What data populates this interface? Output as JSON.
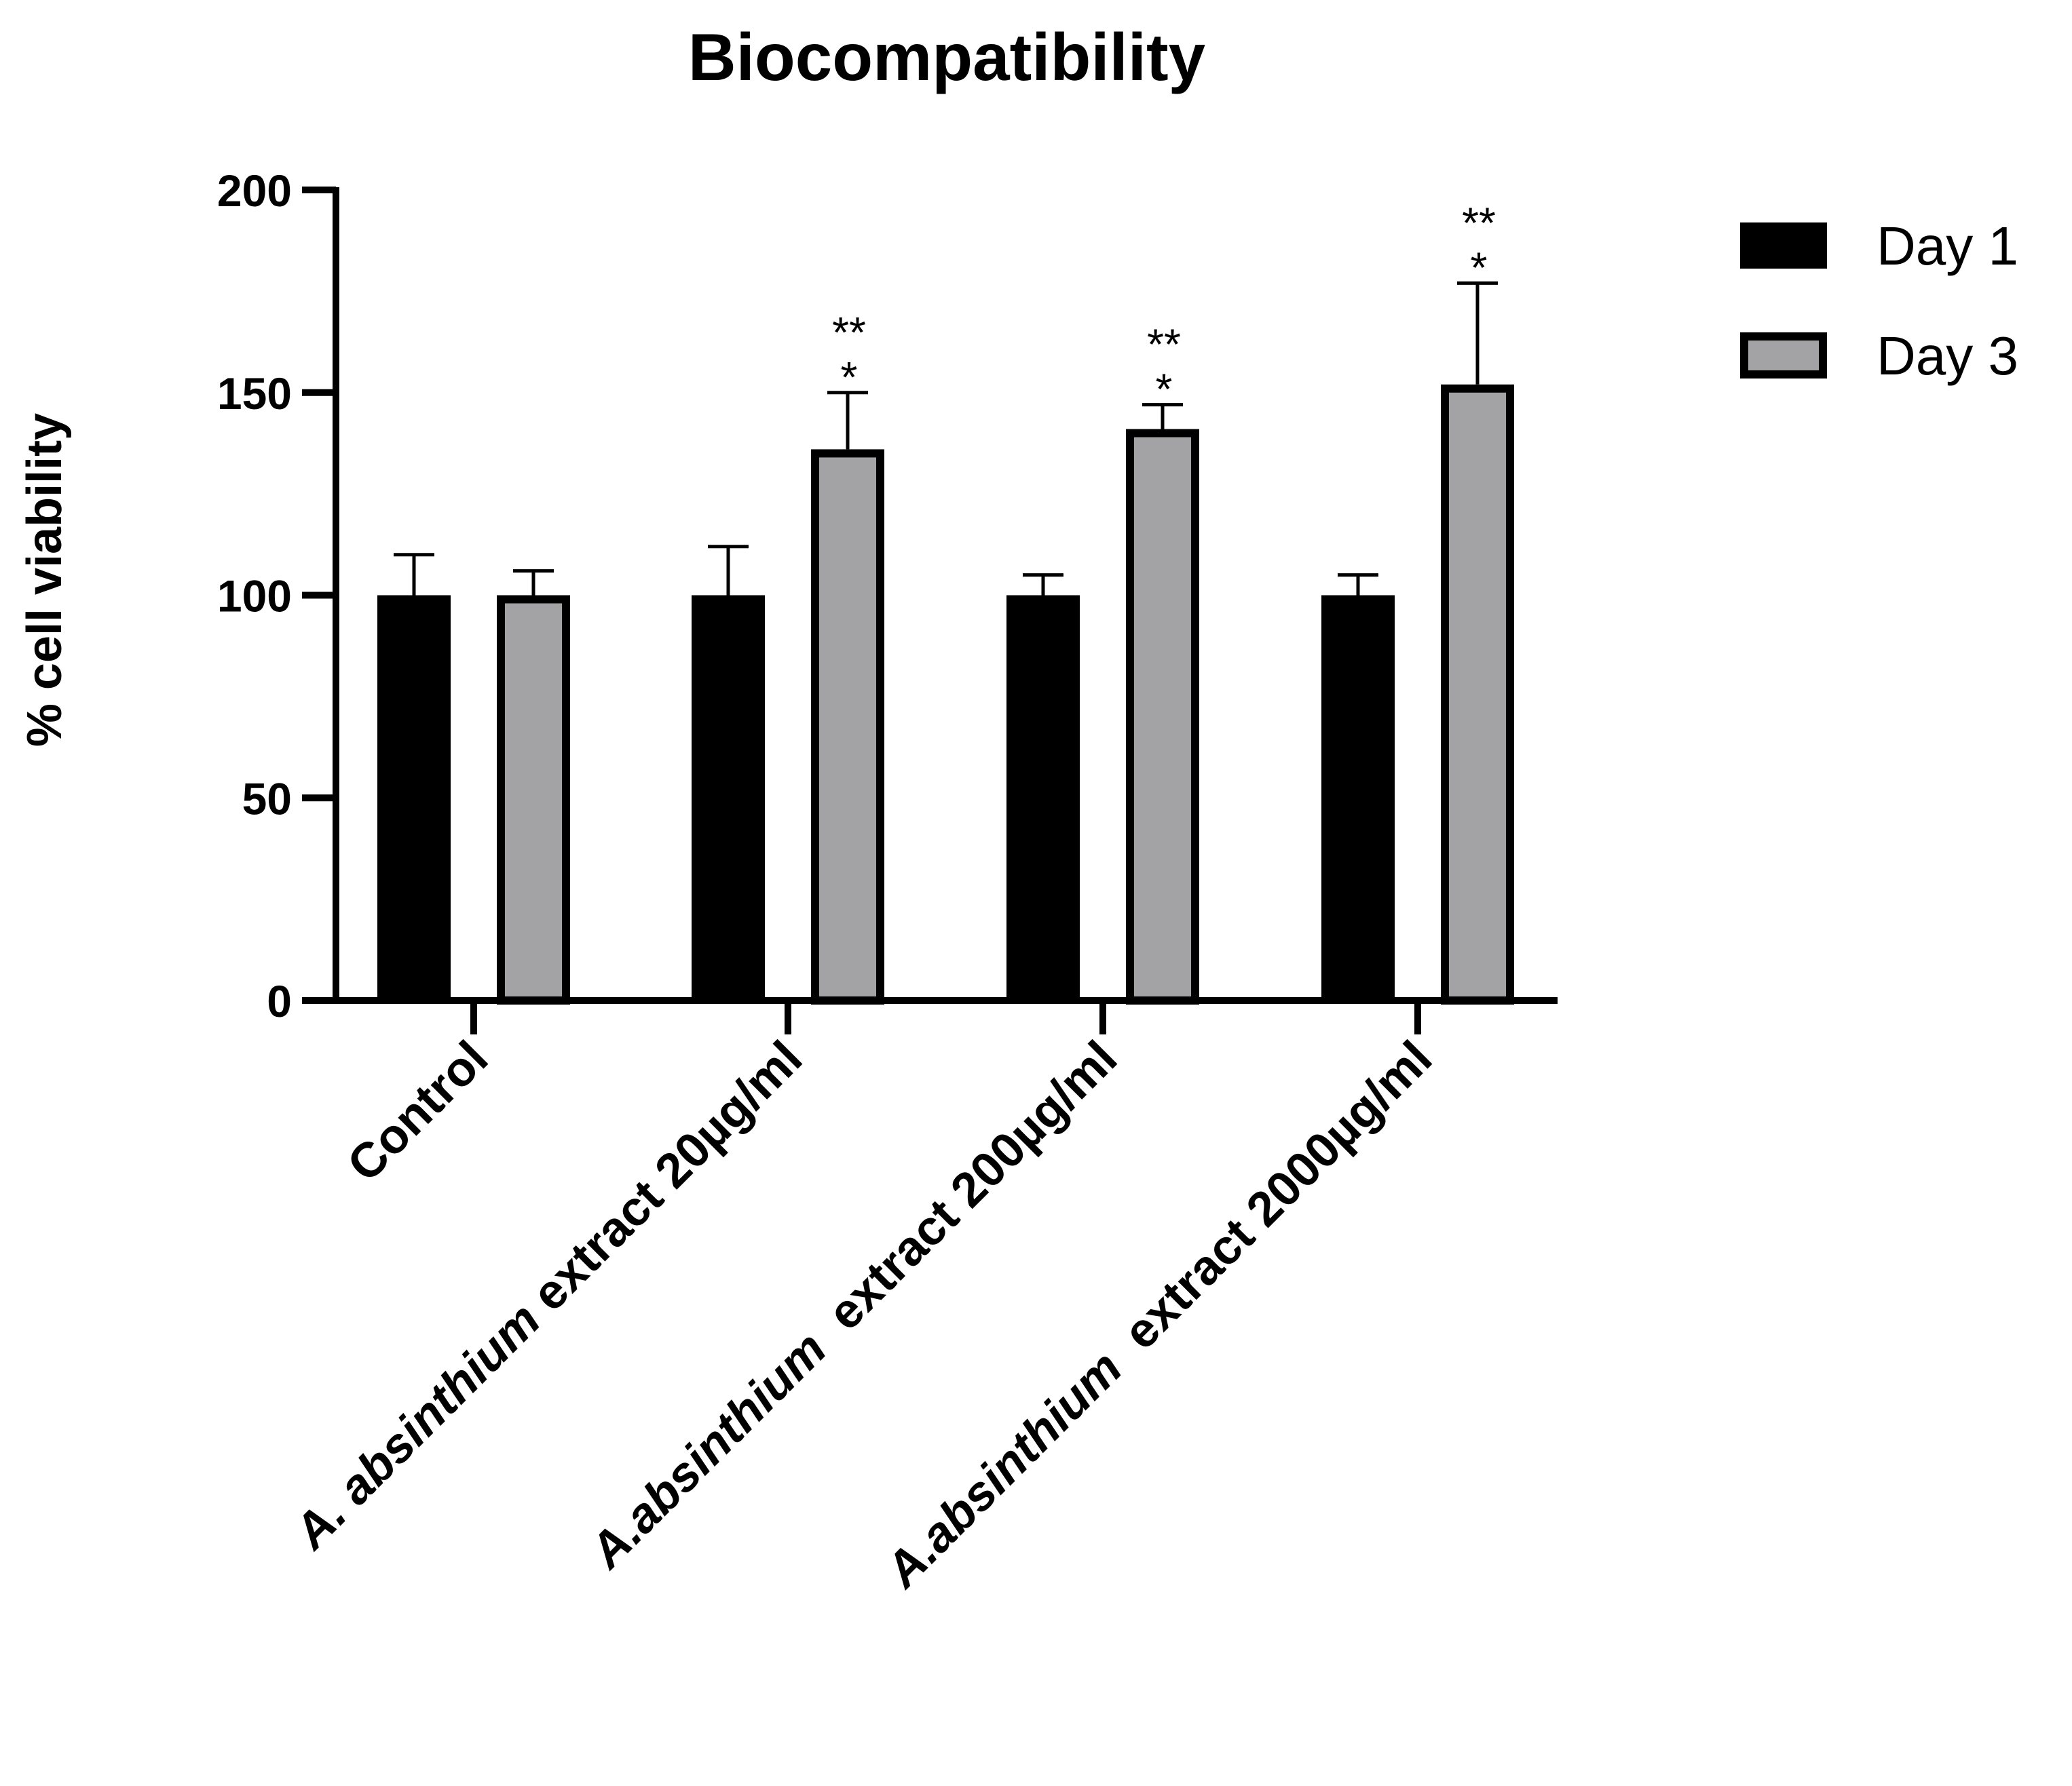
{
  "chart_data": {
    "type": "bar",
    "title": "Biocompatibility",
    "xlabel": "",
    "ylabel": "% cell viability",
    "ylim": [
      0,
      200
    ],
    "yticks": [
      0,
      50,
      100,
      150,
      200
    ],
    "grid": false,
    "legend_position": "top-right",
    "categories": [
      {
        "prefix": "",
        "italic": "",
        "suffix": "Control"
      },
      {
        "prefix": "",
        "italic": "A. absinthium",
        "suffix": " extract 20µg/ml"
      },
      {
        "prefix": "",
        "italic": "A.absinthium",
        "suffix": "  extract 200µg/ml"
      },
      {
        "prefix": "",
        "italic": "A.absinthium",
        "suffix": "  extract 2000µg/ml"
      }
    ],
    "series": [
      {
        "name": "Day 1",
        "color": "#000000",
        "values": [
          100,
          100,
          100,
          100
        ],
        "errors": [
          10,
          12,
          5,
          5
        ]
      },
      {
        "name": "Day 3",
        "color": "#a3a3a6",
        "values": [
          100,
          136,
          141,
          152
        ],
        "errors": [
          6,
          14,
          6,
          25
        ]
      }
    ],
    "annotations": [
      {
        "category_index": 1,
        "series_index": 1,
        "lines": [
          "**",
          "*"
        ]
      },
      {
        "category_index": 2,
        "series_index": 1,
        "lines": [
          "**",
          "*"
        ]
      },
      {
        "category_index": 3,
        "series_index": 1,
        "lines": [
          "**",
          "*"
        ]
      }
    ]
  }
}
